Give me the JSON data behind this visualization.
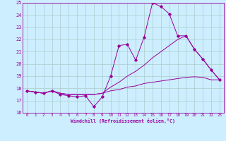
{
  "xlabel": "Windchill (Refroidissement éolien,°C)",
  "hours": [
    0,
    1,
    2,
    3,
    4,
    5,
    6,
    7,
    8,
    9,
    10,
    11,
    12,
    13,
    14,
    15,
    16,
    17,
    18,
    19,
    20,
    21,
    22,
    23
  ],
  "line_zigzag": [
    17.8,
    17.7,
    17.6,
    17.8,
    17.5,
    17.4,
    17.3,
    17.4,
    16.5,
    17.3,
    19.0,
    21.5,
    21.6,
    20.3,
    22.2,
    25.0,
    24.7,
    24.1,
    22.3,
    22.3,
    21.2,
    20.4,
    19.5,
    18.7
  ],
  "line_upper": [
    17.8,
    17.7,
    17.6,
    17.8,
    17.6,
    17.5,
    17.5,
    17.5,
    17.5,
    17.6,
    18.1,
    18.5,
    19.0,
    19.4,
    19.9,
    20.5,
    21.0,
    21.5,
    22.0,
    22.3,
    21.2,
    20.4,
    19.5,
    18.7
  ],
  "line_lower": [
    17.8,
    17.7,
    17.6,
    17.8,
    17.6,
    17.5,
    17.5,
    17.5,
    17.5,
    17.6,
    17.8,
    17.9,
    18.1,
    18.2,
    18.4,
    18.5,
    18.6,
    18.7,
    18.8,
    18.9,
    18.95,
    18.9,
    18.7,
    18.7
  ],
  "color": "#990099",
  "bg_color": "#cceeff",
  "grid_color": "#aacccc",
  "ylim": [
    16,
    25
  ],
  "xlim": [
    -0.5,
    23.5
  ]
}
